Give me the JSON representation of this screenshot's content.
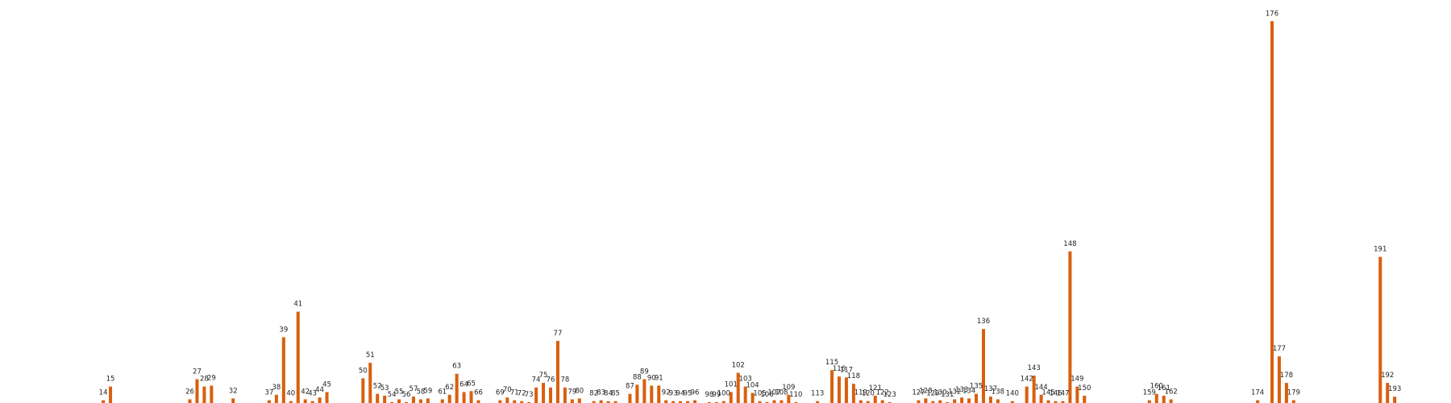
{
  "colors": {
    "bar": "#d95f0e",
    "background": "#ffffff"
  },
  "chart_data": {
    "type": "bar",
    "title": "",
    "xlabel": "",
    "ylabel": "",
    "axes_visible": false,
    "grid": false,
    "ylim": [
      0,
      210
    ],
    "bars": [
      {
        "label": "14",
        "x": 14,
        "value": 1.5
      },
      {
        "label": "15",
        "x": 15,
        "value": 9
      },
      {
        "label": "26",
        "x": 26,
        "value": 2
      },
      {
        "label": "27",
        "x": 27,
        "value": 13
      },
      {
        "label": "28",
        "x": 28,
        "value": 9
      },
      {
        "label": "29",
        "x": 29,
        "value": 9.5
      },
      {
        "label": "32",
        "x": 32,
        "value": 2.5
      },
      {
        "label": "37",
        "x": 37,
        "value": 1.5
      },
      {
        "label": "38",
        "x": 38,
        "value": 4.5
      },
      {
        "label": "39",
        "x": 39,
        "value": 36
      },
      {
        "label": "40",
        "x": 40,
        "value": 1
      },
      {
        "label": "41",
        "x": 41,
        "value": 50
      },
      {
        "label": "42",
        "x": 42,
        "value": 2
      },
      {
        "label": "43",
        "x": 43,
        "value": 1
      },
      {
        "label": "44",
        "x": 44,
        "value": 3
      },
      {
        "label": "45",
        "x": 45,
        "value": 6
      },
      {
        "label": "50",
        "x": 50,
        "value": 13.5
      },
      {
        "label": "51",
        "x": 51,
        "value": 22
      },
      {
        "label": "52",
        "x": 52,
        "value": 5
      },
      {
        "label": "53",
        "x": 53,
        "value": 4
      },
      {
        "label": "54",
        "x": 54,
        "value": 0.5
      },
      {
        "label": "55",
        "x": 55,
        "value": 2
      },
      {
        "label": "56",
        "x": 56,
        "value": 0.5
      },
      {
        "label": "57",
        "x": 57,
        "value": 3.5
      },
      {
        "label": "58",
        "x": 58,
        "value": 2
      },
      {
        "label": "59",
        "x": 59,
        "value": 2.5
      },
      {
        "label": "61",
        "x": 61,
        "value": 2
      },
      {
        "label": "62",
        "x": 62,
        "value": 4.5
      },
      {
        "label": "63",
        "x": 63,
        "value": 16
      },
      {
        "label": "64",
        "x": 64,
        "value": 6
      },
      {
        "label": "65",
        "x": 65,
        "value": 6.5
      },
      {
        "label": "66",
        "x": 66,
        "value": 1.5
      },
      {
        "label": "69",
        "x": 69,
        "value": 1.5
      },
      {
        "label": "70",
        "x": 70,
        "value": 3
      },
      {
        "label": "71",
        "x": 71,
        "value": 1.5
      },
      {
        "label": "72",
        "x": 72,
        "value": 1
      },
      {
        "label": "73",
        "x": 73,
        "value": 0.5
      },
      {
        "label": "74",
        "x": 74,
        "value": 8.5
      },
      {
        "label": "75",
        "x": 75,
        "value": 11
      },
      {
        "label": "76",
        "x": 76,
        "value": 8.5
      },
      {
        "label": "77",
        "x": 77,
        "value": 34
      },
      {
        "label": "78",
        "x": 78,
        "value": 8.5
      },
      {
        "label": "79",
        "x": 79,
        "value": 2
      },
      {
        "label": "80",
        "x": 80,
        "value": 2.5
      },
      {
        "label": "82",
        "x": 82,
        "value": 1
      },
      {
        "label": "83",
        "x": 83,
        "value": 1.5
      },
      {
        "label": "84",
        "x": 84,
        "value": 1
      },
      {
        "label": "85",
        "x": 85,
        "value": 1
      },
      {
        "label": "87",
        "x": 87,
        "value": 5
      },
      {
        "label": "88",
        "x": 88,
        "value": 10
      },
      {
        "label": "89",
        "x": 89,
        "value": 13
      },
      {
        "label": "90",
        "x": 90,
        "value": 9.5
      },
      {
        "label": "91",
        "x": 91,
        "value": 9.5
      },
      {
        "label": "92",
        "x": 92,
        "value": 1.5
      },
      {
        "label": "93",
        "x": 93,
        "value": 1
      },
      {
        "label": "94",
        "x": 94,
        "value": 1
      },
      {
        "label": "95",
        "x": 95,
        "value": 1
      },
      {
        "label": "96",
        "x": 96,
        "value": 1.5
      },
      {
        "label": "98",
        "x": 98,
        "value": 0.5
      },
      {
        "label": "99",
        "x": 99,
        "value": 0.5
      },
      {
        "label": "100",
        "x": 100,
        "value": 1
      },
      {
        "label": "101",
        "x": 101,
        "value": 6
      },
      {
        "label": "102",
        "x": 102,
        "value": 16.5
      },
      {
        "label": "103",
        "x": 103,
        "value": 9
      },
      {
        "label": "104",
        "x": 104,
        "value": 5.5
      },
      {
        "label": "105",
        "x": 105,
        "value": 1
      },
      {
        "label": "106",
        "x": 106,
        "value": 0.5
      },
      {
        "label": "107",
        "x": 107,
        "value": 1.5
      },
      {
        "label": "108",
        "x": 108,
        "value": 1.5
      },
      {
        "label": "109",
        "x": 109,
        "value": 4.5
      },
      {
        "label": "110",
        "x": 110,
        "value": 0.5
      },
      {
        "label": "113",
        "x": 113,
        "value": 1
      },
      {
        "label": "115",
        "x": 115,
        "value": 18
      },
      {
        "label": "116",
        "x": 116,
        "value": 14.5
      },
      {
        "label": "117",
        "x": 117,
        "value": 14
      },
      {
        "label": "118",
        "x": 118,
        "value": 10.5
      },
      {
        "label": "119",
        "x": 119,
        "value": 1.5
      },
      {
        "label": "120",
        "x": 120,
        "value": 1
      },
      {
        "label": "121",
        "x": 121,
        "value": 4
      },
      {
        "label": "122",
        "x": 122,
        "value": 1.5
      },
      {
        "label": "123",
        "x": 123,
        "value": 0.5
      },
      {
        "label": "127",
        "x": 127,
        "value": 1.5
      },
      {
        "label": "128",
        "x": 128,
        "value": 2.5
      },
      {
        "label": "129",
        "x": 129,
        "value": 1
      },
      {
        "label": "130",
        "x": 130,
        "value": 1.5
      },
      {
        "label": "131",
        "x": 131,
        "value": 0.5
      },
      {
        "label": "132",
        "x": 132,
        "value": 2
      },
      {
        "label": "133",
        "x": 133,
        "value": 3
      },
      {
        "label": "134",
        "x": 134,
        "value": 2.5
      },
      {
        "label": "135",
        "x": 135,
        "value": 5
      },
      {
        "label": "136",
        "x": 136,
        "value": 40.5
      },
      {
        "label": "137",
        "x": 137,
        "value": 3.5
      },
      {
        "label": "138",
        "x": 138,
        "value": 2
      },
      {
        "label": "140",
        "x": 140,
        "value": 1
      },
      {
        "label": "142",
        "x": 142,
        "value": 9
      },
      {
        "label": "143",
        "x": 143,
        "value": 15
      },
      {
        "label": "144",
        "x": 144,
        "value": 4.5
      },
      {
        "label": "145",
        "x": 145,
        "value": 1.5
      },
      {
        "label": "146",
        "x": 146,
        "value": 1
      },
      {
        "label": "147",
        "x": 147,
        "value": 1
      },
      {
        "label": "148",
        "x": 148,
        "value": 83
      },
      {
        "label": "149",
        "x": 149,
        "value": 9
      },
      {
        "label": "150",
        "x": 150,
        "value": 4
      },
      {
        "label": "159",
        "x": 159,
        "value": 1.5
      },
      {
        "label": "160",
        "x": 160,
        "value": 5
      },
      {
        "label": "161",
        "x": 161,
        "value": 4
      },
      {
        "label": "162",
        "x": 162,
        "value": 2
      },
      {
        "label": "174",
        "x": 174,
        "value": 1.5
      },
      {
        "label": "176",
        "x": 176,
        "value": 209
      },
      {
        "label": "177",
        "x": 177,
        "value": 25.5
      },
      {
        "label": "178",
        "x": 178,
        "value": 11
      },
      {
        "label": "179",
        "x": 179,
        "value": 1.5
      },
      {
        "label": "191",
        "x": 191,
        "value": 80
      },
      {
        "label": "192",
        "x": 192,
        "value": 11
      },
      {
        "label": "193",
        "x": 193,
        "value": 3.5
      }
    ]
  }
}
